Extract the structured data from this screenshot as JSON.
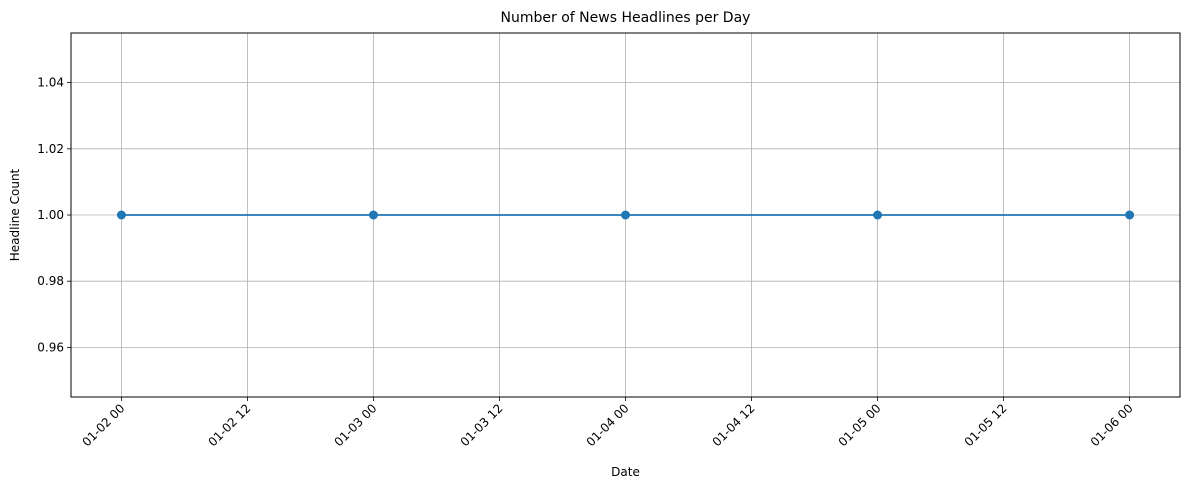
{
  "chart_data": {
    "type": "line",
    "title": "Number of News Headlines per Day",
    "xlabel": "Date",
    "ylabel": "Headline Count",
    "x": [
      "01-02 00",
      "01-03 00",
      "01-04 00",
      "01-05 00",
      "01-06 00"
    ],
    "series": [
      {
        "values": [
          1,
          1,
          1,
          1,
          1
        ],
        "color": "#1f77b4",
        "marker": "circle"
      }
    ],
    "x_ticks": [
      "01-02 00",
      "01-02 12",
      "01-03 00",
      "01-03 12",
      "01-04 00",
      "01-04 12",
      "01-05 00",
      "01-05 12",
      "01-06 00"
    ],
    "xlim": [
      "01-01 19.2",
      "01-06 04.8"
    ],
    "y_ticks": [
      "0.96",
      "0.98",
      "1.00",
      "1.02",
      "1.04"
    ],
    "ylim": [
      0.945,
      1.055
    ],
    "grid": true,
    "legend": false,
    "x_tick_rotation": 45
  }
}
